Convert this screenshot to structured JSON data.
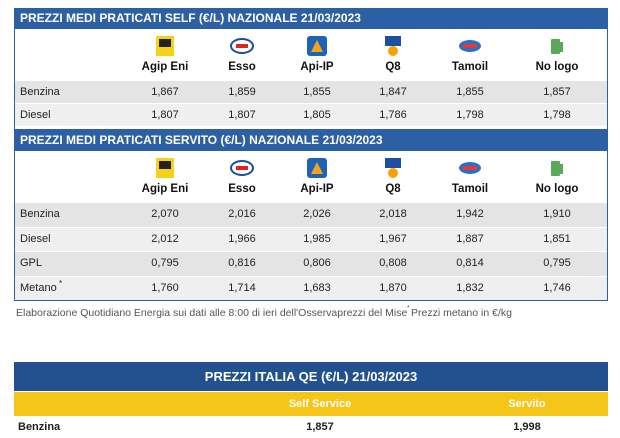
{
  "tables": [
    {
      "title": "PREZZI MEDI PRATICATI SELF (€/L) NAZIONALE 21/03/2023",
      "brands": [
        "Agip Eni",
        "Esso",
        "Api-IP",
        "Q8",
        "Tamoil",
        "No logo"
      ],
      "rows": [
        {
          "label": "Benzina",
          "values": [
            "1,867",
            "1,859",
            "1,855",
            "1,847",
            "1,855",
            "1,857"
          ]
        },
        {
          "label": "Diesel",
          "values": [
            "1,807",
            "1,807",
            "1,805",
            "1,786",
            "1,798",
            "1,798"
          ]
        }
      ]
    },
    {
      "title": "PREZZI MEDI PRATICATI SERVITO (€/L) NAZIONALE 21/03/2023",
      "brands": [
        "Agip Eni",
        "Esso",
        "Api-IP",
        "Q8",
        "Tamoil",
        "No logo"
      ],
      "rows": [
        {
          "label": "Benzina",
          "values": [
            "2,070",
            "2,016",
            "2,026",
            "2,018",
            "1,942",
            "1,910"
          ]
        },
        {
          "label": "Diesel",
          "values": [
            "2,012",
            "1,966",
            "1,985",
            "1,967",
            "1,887",
            "1,851"
          ]
        },
        {
          "label": "GPL",
          "values": [
            "0,795",
            "0,816",
            "0,806",
            "0,808",
            "0,814",
            "0,795"
          ]
        },
        {
          "label": "Metano",
          "note": "*",
          "values": [
            "1,760",
            "1,714",
            "1,683",
            "1,870",
            "1,832",
            "1,746"
          ]
        }
      ]
    }
  ],
  "footnote": {
    "text": "Elaborazione Quotidiano Energia sui dati alle 8:00 di ieri dell'Osservaprezzi del Mise ",
    "mark": "*",
    "note": "Prezzi metano in €/kg"
  },
  "italia": {
    "title": "PREZZI ITALIA QE (€/L) 21/03/2023",
    "columns": [
      "Self Service",
      "Servito"
    ],
    "rows": [
      {
        "label": "Benzina",
        "values": [
          "1,857",
          "1,998"
        ]
      }
    ]
  }
}
